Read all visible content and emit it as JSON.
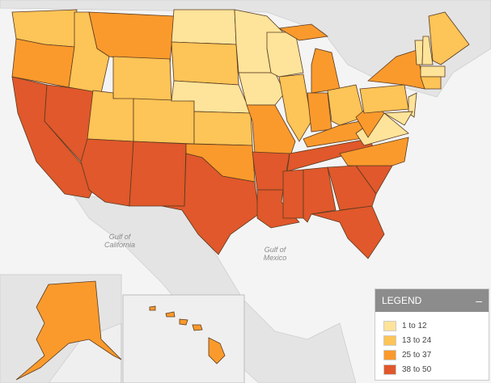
{
  "legend": {
    "title": "LEGEND",
    "collapse_icon": "minus-icon",
    "items": [
      {
        "label": "1 to 12",
        "color": "#fde49a"
      },
      {
        "label": "13 to 24",
        "color": "#fdc457"
      },
      {
        "label": "25 to 37",
        "color": "#fb9a2c"
      },
      {
        "label": "38 to 50",
        "color": "#e0582b"
      }
    ]
  },
  "map_labels": {
    "gulf_california": "Gulf of California",
    "gulf_mexico": "Gulf of Mexico"
  },
  "colors": {
    "land": "#e4e4e4",
    "water": "#f4f4f4",
    "border": "#5a3a20"
  },
  "state_category": {
    "WA": 1,
    "OR": 2,
    "CA": 3,
    "NV": 3,
    "ID": 1,
    "MT": 2,
    "WY": 1,
    "UT": 1,
    "AZ": 3,
    "CO": 1,
    "NM": 3,
    "ND": 0,
    "SD": 1,
    "NE": 0,
    "KS": 1,
    "OK": 2,
    "TX": 3,
    "MN": 0,
    "IA": 0,
    "MO": 2,
    "AR": 3,
    "LA": 3,
    "WI": 0,
    "IL": 1,
    "MI": 2,
    "IN": 2,
    "OH": 1,
    "KY": 2,
    "TN": 3,
    "MS": 3,
    "AL": 3,
    "GA": 3,
    "FL": 3,
    "SC": 3,
    "NC": 2,
    "VA": 0,
    "WV": 2,
    "PA": 1,
    "NY": 2,
    "NJ": 0,
    "MD": 0,
    "VT": 0,
    "NH": 0,
    "ME": 1,
    "MA": 0,
    "CT": 1,
    "AK": 2,
    "HI": 2
  }
}
